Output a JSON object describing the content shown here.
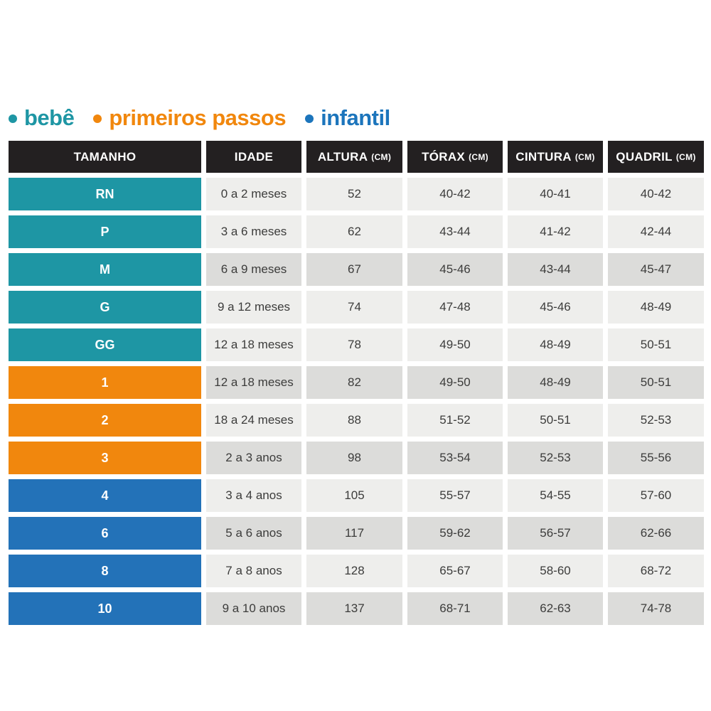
{
  "legend": {
    "items": [
      {
        "label": "bebê",
        "color": "#1e96a4",
        "group": "bebe"
      },
      {
        "label": "primeiros passos",
        "color": "#f1870d",
        "group": "primeiros-passos"
      },
      {
        "label": "infantil",
        "color": "#1c75bc",
        "group": "infantil"
      }
    ]
  },
  "table": {
    "headers": [
      {
        "label": "TAMANHO",
        "unit": ""
      },
      {
        "label": "IDADE",
        "unit": ""
      },
      {
        "label": "ALTURA",
        "unit": "(CM)"
      },
      {
        "label": "TÓRAX",
        "unit": "(CM)"
      },
      {
        "label": "CINTURA",
        "unit": "(CM)"
      },
      {
        "label": "QUADRIL",
        "unit": "(CM)"
      }
    ],
    "rows": [
      {
        "size": "RN",
        "group": "bebe",
        "shade": "light",
        "cells": [
          "0 a 2 meses",
          "52",
          "40-42",
          "40-41",
          "40-42"
        ]
      },
      {
        "size": "P",
        "group": "bebe",
        "shade": "light",
        "cells": [
          "3 a 6 meses",
          "62",
          "43-44",
          "41-42",
          "42-44"
        ]
      },
      {
        "size": "M",
        "group": "bebe",
        "shade": "dark",
        "cells": [
          "6 a 9 meses",
          "67",
          "45-46",
          "43-44",
          "45-47"
        ]
      },
      {
        "size": "G",
        "group": "bebe",
        "shade": "light",
        "cells": [
          "9 a 12 meses",
          "74",
          "47-48",
          "45-46",
          "48-49"
        ]
      },
      {
        "size": "GG",
        "group": "bebe",
        "shade": "light",
        "cells": [
          "12 a 18 meses",
          "78",
          "49-50",
          "48-49",
          "50-51"
        ]
      },
      {
        "size": "1",
        "group": "primeiros-passos",
        "shade": "dark",
        "cells": [
          "12 a 18 meses",
          "82",
          "49-50",
          "48-49",
          "50-51"
        ]
      },
      {
        "size": "2",
        "group": "primeiros-passos",
        "shade": "light",
        "cells": [
          "18 a 24 meses",
          "88",
          "51-52",
          "50-51",
          "52-53"
        ]
      },
      {
        "size": "3",
        "group": "primeiros-passos",
        "shade": "dark",
        "cells": [
          "2 a 3 anos",
          "98",
          "53-54",
          "52-53",
          "55-56"
        ]
      },
      {
        "size": "4",
        "group": "infantil",
        "shade": "light",
        "cells": [
          "3 a 4 anos",
          "105",
          "55-57",
          "54-55",
          "57-60"
        ]
      },
      {
        "size": "6",
        "group": "infantil",
        "shade": "dark",
        "cells": [
          "5 a 6 anos",
          "117",
          "59-62",
          "56-57",
          "62-66"
        ]
      },
      {
        "size": "8",
        "group": "infantil",
        "shade": "light",
        "cells": [
          "7 a 8 anos",
          "128",
          "65-67",
          "58-60",
          "68-72"
        ]
      },
      {
        "size": "10",
        "group": "infantil",
        "shade": "dark",
        "cells": [
          "9 a 10 anos",
          "137",
          "68-71",
          "62-63",
          "74-78"
        ]
      }
    ]
  },
  "colors": {
    "bebe": "#1e96a4",
    "primeiros-passos": "#f1870d",
    "infantil": "#2372b8",
    "header_bg": "#232021",
    "row_light": "#eeeeec",
    "row_dark": "#dcdcda",
    "cell_text": "#3c3c3b"
  },
  "chart_data": {
    "type": "table",
    "title": "",
    "legend": [
      "bebê",
      "primeiros passos",
      "infantil"
    ],
    "legend_position": "top",
    "columns": [
      "TAMANHO",
      "IDADE",
      "ALTURA (CM)",
      "TÓRAX (CM)",
      "CINTURA (CM)",
      "QUADRIL (CM)"
    ],
    "rows": [
      [
        "RN",
        "0 a 2 meses",
        "52",
        "40-42",
        "40-41",
        "40-42"
      ],
      [
        "P",
        "3 a 6 meses",
        "62",
        "43-44",
        "41-42",
        "42-44"
      ],
      [
        "M",
        "6 a 9 meses",
        "67",
        "45-46",
        "43-44",
        "45-47"
      ],
      [
        "G",
        "9 a 12 meses",
        "74",
        "47-48",
        "45-46",
        "48-49"
      ],
      [
        "GG",
        "12 a 18 meses",
        "78",
        "49-50",
        "48-49",
        "50-51"
      ],
      [
        "1",
        "12 a 18 meses",
        "82",
        "49-50",
        "48-49",
        "50-51"
      ],
      [
        "2",
        "18 a 24 meses",
        "88",
        "51-52",
        "50-51",
        "52-53"
      ],
      [
        "3",
        "2 a 3 anos",
        "98",
        "53-54",
        "52-53",
        "55-56"
      ],
      [
        "4",
        "3 a 4 anos",
        "105",
        "55-57",
        "54-55",
        "57-60"
      ],
      [
        "6",
        "5 a 6 anos",
        "117",
        "59-62",
        "56-57",
        "62-66"
      ],
      [
        "8",
        "7 a 8 anos",
        "128",
        "65-67",
        "58-60",
        "68-72"
      ],
      [
        "10",
        "9 a 10 anos",
        "137",
        "68-71",
        "62-63",
        "74-78"
      ]
    ],
    "row_groups": {
      "bebê": [
        "RN",
        "P",
        "M",
        "G",
        "GG"
      ],
      "primeiros passos": [
        "1",
        "2",
        "3"
      ],
      "infantil": [
        "4",
        "6",
        "8",
        "10"
      ]
    }
  }
}
